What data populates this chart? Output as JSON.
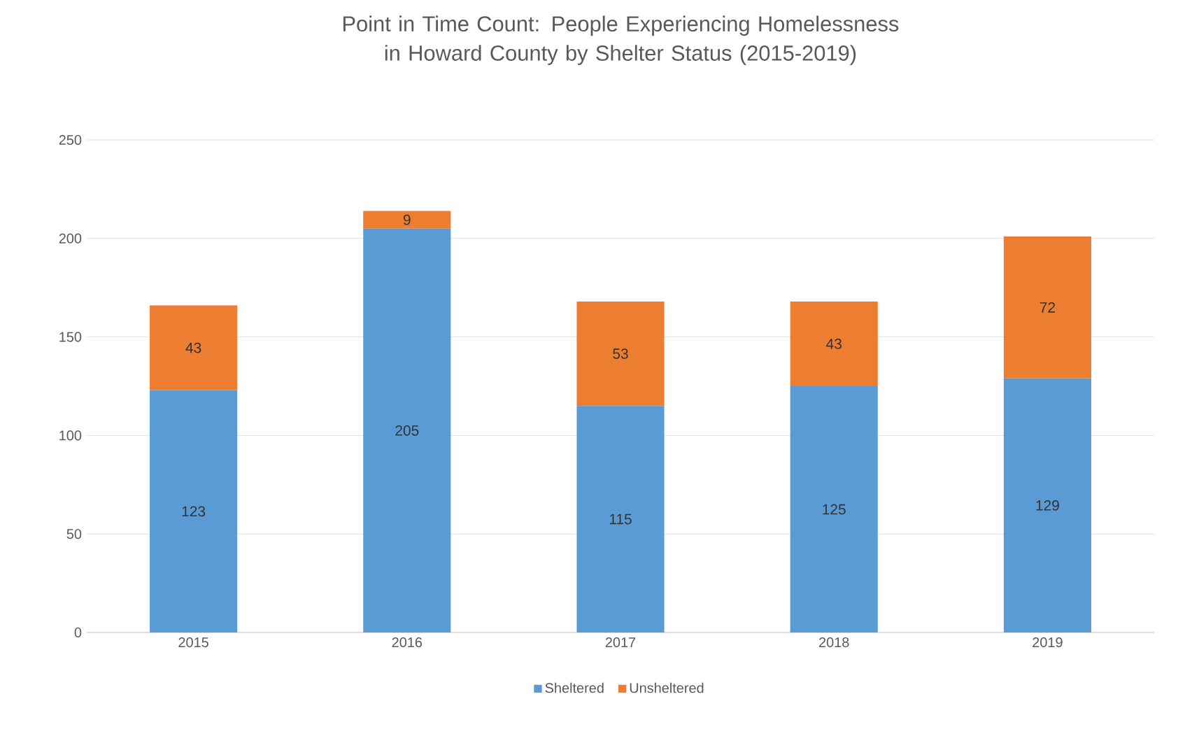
{
  "chart_data": {
    "type": "bar",
    "title": "Point in Time Count: People Experiencing Homelessness in Howard County by Shelter Status (2015-2019)",
    "categories": [
      "2015",
      "2016",
      "2017",
      "2018",
      "2019"
    ],
    "series": [
      {
        "name": "Sheltered",
        "color": "#5b9bd5",
        "values": [
          123,
          205,
          115,
          125,
          129
        ]
      },
      {
        "name": "Unsheltered",
        "color": "#ed7d31",
        "values": [
          43,
          9,
          53,
          43,
          72
        ]
      }
    ],
    "stacked": true,
    "data_labels": true,
    "ylim": [
      0,
      250
    ],
    "yticks": [
      0,
      50,
      100,
      150,
      200,
      250
    ],
    "grid": "y",
    "legend": "bottom"
  }
}
